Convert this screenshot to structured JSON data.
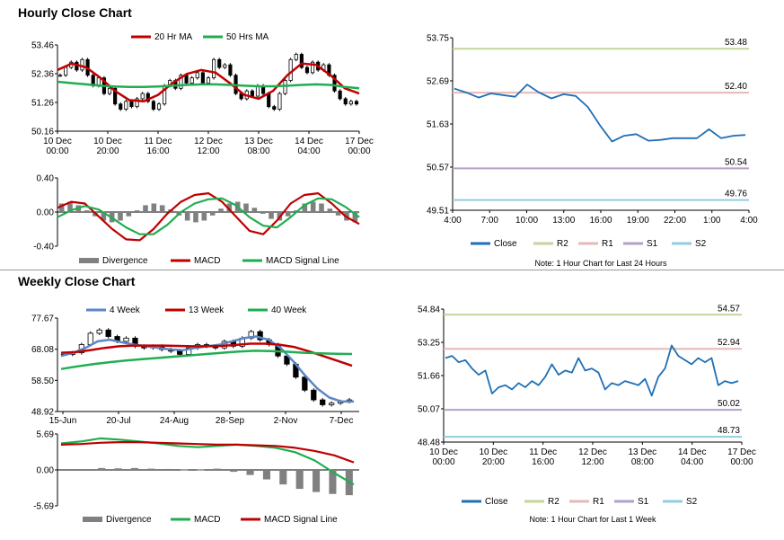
{
  "hourly_title": "Hourly Close Chart",
  "weekly_title": "Weekly Close Chart",
  "colors": {
    "ma_red": "#c00000",
    "ma_green": "#1fae50",
    "ma_blue": "#5b87c5",
    "close": "#1f6fb5",
    "r2": "#c3d69b",
    "r1": "#e6b9b8",
    "s1": "#b3a2c7",
    "s2": "#93cddd",
    "bar": "#808080"
  },
  "chart_data": [
    {
      "id": "hourly_price",
      "type": "line",
      "legend": [
        "20 Hr MA",
        "50 Hrs MA"
      ],
      "y_ticks": [
        "53.46",
        "52.36",
        "51.26",
        "50.16"
      ],
      "ylim": [
        50.16,
        53.46
      ],
      "x_ticks": [
        "10 Dec\n00:00",
        "10 Dec\n20:00",
        "11 Dec\n16:00",
        "12 Dec\n12:00",
        "13 Dec\n08:00",
        "14 Dec\n04:00",
        "17 Dec\n00:00"
      ],
      "candles": [
        52.3,
        52.6,
        52.8,
        52.5,
        52.9,
        52.3,
        51.9,
        52.2,
        51.6,
        51.8,
        51.2,
        51.0,
        51.3,
        51.1,
        51.4,
        51.6,
        51.3,
        51.0,
        51.2,
        51.9,
        52.1,
        51.8,
        52.3,
        52.0,
        52.2,
        52.4,
        52.0,
        52.2,
        52.9,
        52.6,
        52.7,
        52.3,
        51.6,
        51.4,
        51.7,
        51.5,
        51.9,
        51.6,
        51.1,
        51.0,
        51.6,
        52.1,
        52.9,
        53.1,
        52.6,
        52.4,
        52.8,
        52.5,
        52.7,
        52.3,
        51.7,
        51.4,
        51.2,
        51.3,
        51.2
      ],
      "series": [
        {
          "name": "20 Hr MA",
          "color_key": "ma_red",
          "values": [
            52.5,
            52.75,
            52.6,
            52.2,
            51.7,
            51.35,
            51.3,
            51.55,
            52.0,
            52.35,
            52.5,
            52.4,
            52.0,
            51.55,
            51.4,
            51.7,
            52.3,
            52.75,
            52.7,
            52.3,
            51.8,
            51.6
          ]
        },
        {
          "name": "50 Hrs MA",
          "color_key": "ma_green",
          "values": [
            52.05,
            52.0,
            51.95,
            51.9,
            51.87,
            51.85,
            51.85,
            51.87,
            51.9,
            51.93,
            51.95,
            51.95,
            51.93,
            51.9,
            51.88,
            51.88,
            51.9,
            51.93,
            51.95,
            51.93,
            51.85,
            51.8
          ]
        }
      ]
    },
    {
      "id": "hourly_macd",
      "type": "line",
      "legend": [
        "Divergence",
        "MACD",
        "MACD Signal Line"
      ],
      "y_ticks": [
        "0.40",
        "0.00",
        "-0.40"
      ],
      "ylim": [
        -0.4,
        0.4
      ],
      "divergence": [
        0.1,
        0.12,
        0.08,
        0.02,
        -0.05,
        -0.1,
        -0.12,
        -0.1,
        -0.05,
        0.02,
        0.08,
        0.1,
        0.08,
        0.03,
        -0.04,
        -0.1,
        -0.12,
        -0.1,
        -0.04,
        0.04,
        0.1,
        0.12,
        0.1,
        0.05,
        -0.02,
        -0.08,
        -0.1,
        -0.05,
        0.02,
        0.1,
        0.12,
        0.1,
        0.04,
        -0.04,
        -0.1,
        -0.12
      ],
      "series": [
        {
          "name": "MACD",
          "color_key": "ma_red",
          "values": [
            0.05,
            0.12,
            0.1,
            -0.05,
            -0.2,
            -0.32,
            -0.33,
            -0.2,
            -0.02,
            0.12,
            0.2,
            0.22,
            0.12,
            -0.05,
            -0.22,
            -0.26,
            -0.1,
            0.1,
            0.2,
            0.22,
            0.1,
            -0.05,
            -0.14
          ]
        },
        {
          "name": "MACD Signal Line",
          "color_key": "ma_green",
          "values": [
            -0.06,
            0.02,
            0.07,
            0.03,
            -0.07,
            -0.18,
            -0.26,
            -0.26,
            -0.15,
            0.0,
            0.1,
            0.15,
            0.16,
            0.08,
            -0.06,
            -0.16,
            -0.18,
            -0.06,
            0.08,
            0.16,
            0.15,
            0.06,
            -0.06
          ]
        }
      ]
    },
    {
      "id": "hourly_close_24h",
      "type": "line",
      "y_ticks": [
        "53.75",
        "52.69",
        "51.63",
        "50.57",
        "49.51"
      ],
      "ylim": [
        49.51,
        53.75
      ],
      "x_ticks": [
        "4:00",
        "7:00",
        "10:00",
        "13:00",
        "16:00",
        "19:00",
        "22:00",
        "1:00",
        "4:00"
      ],
      "close": [
        52.5,
        52.4,
        52.28,
        52.38,
        52.34,
        52.3,
        52.6,
        52.4,
        52.26,
        52.36,
        52.32,
        52.05,
        51.6,
        51.2,
        51.34,
        51.38,
        51.22,
        51.24,
        51.28,
        51.28,
        51.28,
        51.5,
        51.28,
        51.34,
        51.36
      ],
      "levels": [
        {
          "name": "R2",
          "value": 53.48,
          "label": "53.48",
          "color_key": "r2"
        },
        {
          "name": "R1",
          "value": 52.4,
          "label": "52.40",
          "color_key": "r1"
        },
        {
          "name": "S1",
          "value": 50.54,
          "label": "50.54",
          "color_key": "s1"
        },
        {
          "name": "S2",
          "value": 49.76,
          "label": "49.76",
          "color_key": "s2"
        }
      ],
      "legend": [
        "Close",
        "R2",
        "R1",
        "S1",
        "S2"
      ],
      "note": "Note: 1 Hour Chart for Last 24 Hours"
    },
    {
      "id": "weekly_price",
      "type": "line",
      "legend": [
        "4 Week",
        "13 Week",
        "40 Week"
      ],
      "y_ticks": [
        "77.67",
        "68.08",
        "58.50",
        "48.92"
      ],
      "ylim": [
        48.92,
        77.67
      ],
      "x_ticks": [
        "15-Jun",
        "20-Jul",
        "24-Aug",
        "28-Sep",
        "2-Nov",
        "7-Dec"
      ],
      "candles": [
        66.5,
        67.0,
        69.5,
        73.0,
        74.0,
        72.0,
        70.5,
        71.5,
        69.0,
        68.5,
        69.0,
        68.0,
        67.5,
        66.5,
        68.5,
        69.5,
        69.0,
        68.5,
        70.5,
        69.0,
        71.5,
        73.5,
        71.0,
        69.5,
        66.0,
        63.5,
        59.5,
        55.5,
        52.5,
        51.0,
        51.5,
        52.0,
        52.5
      ],
      "series": [
        {
          "name": "4 Week",
          "color_key": "ma_blue",
          "values": [
            66.0,
            67.0,
            68.5,
            70.5,
            71.0,
            70.2,
            69.5,
            69.0,
            68.5,
            68.0,
            67.8,
            68.5,
            69.0,
            69.5,
            70.5,
            71.5,
            72.0,
            71.0,
            68.5,
            64.5,
            60.0,
            56.0,
            53.2,
            52.0,
            52.0
          ]
        },
        {
          "name": "13 Week",
          "color_key": "ma_red",
          "values": [
            67.0,
            67.2,
            67.8,
            68.5,
            69.0,
            69.2,
            69.2,
            69.2,
            69.1,
            69.0,
            69.0,
            69.1,
            69.4,
            69.8,
            69.8,
            69.5,
            68.8,
            67.5,
            66.0,
            64.5,
            63.0
          ]
        },
        {
          "name": "40 Week",
          "color_key": "ma_green",
          "values": [
            62.0,
            62.8,
            63.5,
            64.1,
            64.6,
            65.0,
            65.4,
            65.8,
            66.2,
            66.6,
            67.0,
            67.4,
            67.6,
            67.5,
            67.3,
            67.0,
            66.8,
            66.7,
            66.6
          ]
        }
      ]
    },
    {
      "id": "weekly_macd",
      "type": "line",
      "legend": [
        "Divergence",
        "MACD",
        "MACD Signal Line"
      ],
      "y_ticks": [
        "5.69",
        "0.00",
        "-5.69"
      ],
      "ylim": [
        -5.69,
        5.69
      ],
      "divergence": [
        0.3,
        0.25,
        0.3,
        0.2,
        0.15,
        0.1,
        0.1,
        0.2,
        -0.3,
        -0.8,
        -1.5,
        -2.3,
        -3.0,
        -3.5,
        -3.8,
        -4.0
      ],
      "series": [
        {
          "name": "MACD",
          "color_key": "ma_green",
          "values": [
            4.2,
            4.5,
            5.0,
            4.8,
            4.5,
            4.2,
            3.8,
            3.6,
            3.8,
            4.0,
            3.8,
            3.5,
            2.8,
            1.5,
            -0.5,
            -2.3
          ]
        },
        {
          "name": "MACD Signal Line",
          "color_key": "ma_red",
          "values": [
            4.0,
            4.1,
            4.3,
            4.4,
            4.4,
            4.3,
            4.2,
            4.1,
            4.0,
            4.0,
            3.9,
            3.8,
            3.5,
            3.0,
            2.3,
            1.2
          ]
        }
      ]
    },
    {
      "id": "weekly_close_1w",
      "type": "line",
      "y_ticks": [
        "54.84",
        "53.25",
        "51.66",
        "50.07",
        "48.48"
      ],
      "ylim": [
        48.48,
        54.84
      ],
      "x_ticks": [
        "10 Dec\n00:00",
        "10 Dec\n20:00",
        "11 Dec\n16:00",
        "12 Dec\n12:00",
        "13 Dec\n08:00",
        "14 Dec\n04:00",
        "17 Dec\n00:00"
      ],
      "close": [
        52.5,
        52.6,
        52.3,
        52.4,
        52.0,
        51.7,
        51.9,
        50.8,
        51.1,
        51.2,
        51.0,
        51.3,
        51.1,
        51.4,
        51.2,
        51.6,
        52.2,
        51.7,
        51.9,
        51.8,
        52.5,
        51.9,
        52.0,
        51.8,
        51.0,
        51.3,
        51.2,
        51.4,
        51.3,
        51.2,
        51.5,
        50.7,
        51.6,
        52.0,
        53.1,
        52.6,
        52.4,
        52.2,
        52.5,
        52.3,
        52.5,
        51.2,
        51.4,
        51.3,
        51.4
      ],
      "levels": [
        {
          "name": "R2",
          "value": 54.57,
          "label": "54.57",
          "color_key": "r2"
        },
        {
          "name": "R1",
          "value": 52.94,
          "label": "52.94",
          "color_key": "r1"
        },
        {
          "name": "S1",
          "value": 50.02,
          "label": "50.02",
          "color_key": "s1"
        },
        {
          "name": "S2",
          "value": 48.73,
          "label": "48.73",
          "color_key": "s2"
        }
      ],
      "legend": [
        "Close",
        "R2",
        "R1",
        "S1",
        "S2"
      ],
      "note": "Note: 1 Hour Chart for Last 1 Week"
    }
  ]
}
